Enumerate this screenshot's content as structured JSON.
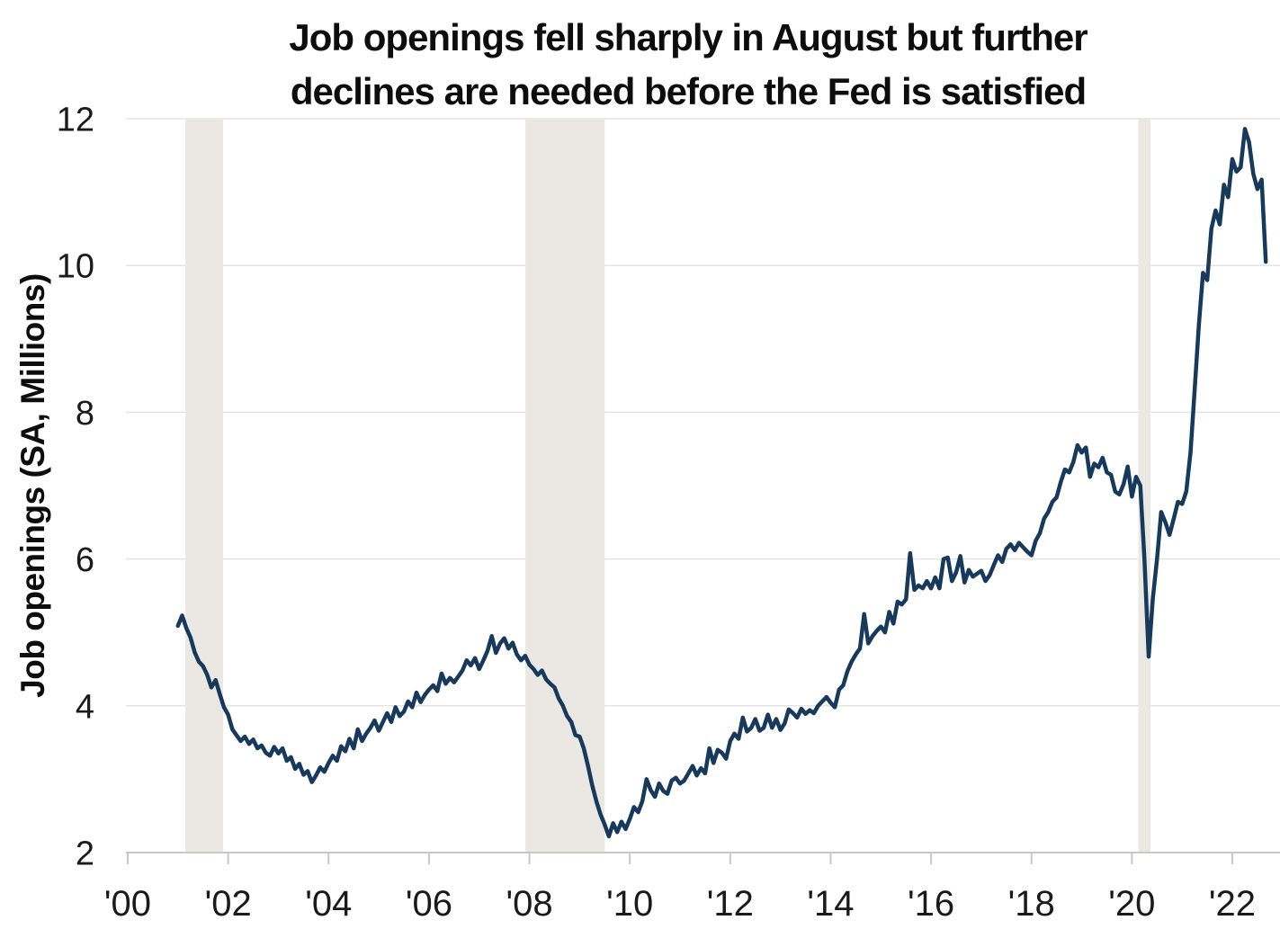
{
  "title": {
    "line1": "Job openings fell sharply in August but further",
    "line2": "declines are needed before the Fed is satisfied"
  },
  "axes": {
    "y_title": "Job openings (SA, Millions)"
  },
  "chart_data": {
    "type": "line",
    "title": "Job openings fell sharply in August but further declines are needed before the Fed is satisfied",
    "ylabel": "Job openings (SA, Millions)",
    "xlabel": "",
    "legend": "none",
    "grid": "horizontal",
    "ylim": [
      2,
      12
    ],
    "y_ticks": [
      2,
      4,
      6,
      8,
      10,
      12
    ],
    "x_tick_years": [
      2000,
      2002,
      2004,
      2006,
      2008,
      2010,
      2012,
      2014,
      2016,
      2018,
      2020,
      2022
    ],
    "x_tick_labels": [
      "'00",
      "'02",
      "'04",
      "'06",
      "'08",
      "'10",
      "'12",
      "'14",
      "'16",
      "'18",
      "'20",
      "'22"
    ],
    "xlim_years": [
      2000.0,
      2022.97
    ],
    "frequency": "monthly",
    "series_start": {
      "year": 2000,
      "month": 12
    },
    "series": [
      {
        "name": "Job openings",
        "unit": "SA, Millions",
        "color": "#17395c",
        "values": [
          5.09,
          5.23,
          5.06,
          4.93,
          4.73,
          4.6,
          4.54,
          4.42,
          4.25,
          4.35,
          4.16,
          3.98,
          3.88,
          3.68,
          3.6,
          3.52,
          3.58,
          3.48,
          3.54,
          3.42,
          3.46,
          3.36,
          3.32,
          3.44,
          3.35,
          3.42,
          3.25,
          3.3,
          3.14,
          3.21,
          3.06,
          3.11,
          2.96,
          3.05,
          3.16,
          3.1,
          3.22,
          3.32,
          3.25,
          3.45,
          3.38,
          3.55,
          3.42,
          3.68,
          3.52,
          3.62,
          3.7,
          3.8,
          3.66,
          3.78,
          3.9,
          3.78,
          3.98,
          3.86,
          3.92,
          4.06,
          3.98,
          4.18,
          4.05,
          4.15,
          4.22,
          4.28,
          4.2,
          4.44,
          4.3,
          4.38,
          4.32,
          4.4,
          4.48,
          4.62,
          4.55,
          4.65,
          4.5,
          4.62,
          4.75,
          4.95,
          4.72,
          4.85,
          4.92,
          4.78,
          4.86,
          4.7,
          4.62,
          4.68,
          4.56,
          4.5,
          4.42,
          4.48,
          4.36,
          4.3,
          4.25,
          4.1,
          4.0,
          3.86,
          3.78,
          3.6,
          3.58,
          3.42,
          3.18,
          2.92,
          2.7,
          2.52,
          2.38,
          2.22,
          2.4,
          2.28,
          2.42,
          2.32,
          2.46,
          2.62,
          2.55,
          2.7,
          3.0,
          2.85,
          2.76,
          2.94,
          2.84,
          2.8,
          2.98,
          3.02,
          2.94,
          2.98,
          3.08,
          3.18,
          3.05,
          3.15,
          3.08,
          3.42,
          3.22,
          3.4,
          3.36,
          3.28,
          3.52,
          3.62,
          3.55,
          3.84,
          3.65,
          3.7,
          3.82,
          3.66,
          3.7,
          3.88,
          3.7,
          3.82,
          3.67,
          3.76,
          3.95,
          3.9,
          3.84,
          3.96,
          3.89,
          3.94,
          3.9,
          4.0,
          4.06,
          4.12,
          4.04,
          3.98,
          4.22,
          4.28,
          4.47,
          4.6,
          4.7,
          4.78,
          5.25,
          4.85,
          4.95,
          5.02,
          5.08,
          5.0,
          5.28,
          5.12,
          5.42,
          5.38,
          5.45,
          6.08,
          5.58,
          5.64,
          5.6,
          5.7,
          5.6,
          5.75,
          5.6,
          6.0,
          6.02,
          5.7,
          5.82,
          6.04,
          5.68,
          5.85,
          5.76,
          5.8,
          5.84,
          5.7,
          5.78,
          5.92,
          6.05,
          5.96,
          6.14,
          6.2,
          6.12,
          6.22,
          6.16,
          6.1,
          6.05,
          6.25,
          6.35,
          6.55,
          6.64,
          6.78,
          6.84,
          7.05,
          7.22,
          7.18,
          7.32,
          7.55,
          7.45,
          7.52,
          7.12,
          7.3,
          7.25,
          7.38,
          7.18,
          7.15,
          6.92,
          6.88,
          7.02,
          7.26,
          6.85,
          7.12,
          7.0,
          6.0,
          4.67,
          5.46,
          6.0,
          6.64,
          6.5,
          6.33,
          6.55,
          6.78,
          6.75,
          6.92,
          7.45,
          8.3,
          9.19,
          9.9,
          9.8,
          10.5,
          10.75,
          10.56,
          11.1,
          10.93,
          11.45,
          11.28,
          11.34,
          11.86,
          11.68,
          11.25,
          11.04,
          11.17,
          10.05
        ]
      }
    ],
    "recession_bands": {
      "color": "#ebe8e4",
      "ranges": [
        [
          2001.15,
          2001.9
        ],
        [
          2007.92,
          2009.5
        ],
        [
          2020.13,
          2020.37
        ]
      ]
    },
    "colors": {
      "background": "#ffffff",
      "gridline": "#e4e4e4",
      "axis": "#c8c8c8",
      "tick_text": "#1a1a1a",
      "title_text": "#0d0d0d",
      "line": "#17395c"
    }
  }
}
